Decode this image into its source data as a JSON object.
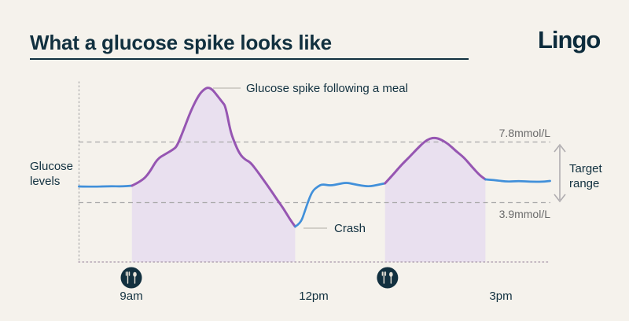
{
  "header": {
    "title": "What a glucose spike looks like",
    "logo": "Lingo"
  },
  "labels": {
    "y_axis": "Glucose levels"
  },
  "annotations": {
    "spike": "Glucose spike following a meal",
    "crash": "Crash",
    "target_range": "Target range",
    "upper_threshold": "7.8mmol/L",
    "lower_threshold": "3.9mmol/L"
  },
  "colors": {
    "background": "#f5f2ec",
    "navy": "#11303f",
    "purple": "#9656b2",
    "purple_fill": "#e9e0ef",
    "blue": "#4190da",
    "guide_gray": "#a9a9a9",
    "baseline_dots": "#b3a4b3",
    "leader_gray": "#c6c3bc",
    "arrow_gray": "#b0adb0",
    "gray_text": "#6b6b6b",
    "icon_circle": "#12303f",
    "icon_glyph": "#e7e2d8"
  },
  "chart_data": {
    "type": "line",
    "x_unit": "hour_of_day",
    "y_unit": "mmol/L",
    "x_ticks": [
      {
        "t": 9,
        "label": "9am"
      },
      {
        "t": 12,
        "label": "12pm"
      },
      {
        "t": 15,
        "label": "3pm"
      }
    ],
    "thresholds": {
      "upper": 7.8,
      "lower": 3.9
    },
    "ylim": [
      0,
      11.5
    ],
    "xlim": [
      8.15,
      15.8
    ],
    "legend": "none",
    "meals": [
      {
        "t": 9.0,
        "icon": "cutlery-icon"
      },
      {
        "t": 13.16,
        "icon": "cutlery-icon"
      }
    ],
    "series": [
      {
        "name": "baseline-before-meal",
        "color_role": "blue",
        "filled": false,
        "points": [
          [
            8.15,
            4.95
          ],
          [
            8.4,
            4.93
          ],
          [
            8.65,
            4.97
          ],
          [
            8.85,
            4.95
          ],
          [
            9.01,
            5.0
          ]
        ]
      },
      {
        "name": "spike-after-meal",
        "color_role": "purple",
        "filled": true,
        "points": [
          [
            9.01,
            5.0
          ],
          [
            9.17,
            5.3
          ],
          [
            9.29,
            5.8
          ],
          [
            9.42,
            6.7
          ],
          [
            9.55,
            7.0
          ],
          [
            9.68,
            7.3
          ],
          [
            9.74,
            7.5
          ],
          [
            9.84,
            8.45
          ],
          [
            9.97,
            9.8
          ],
          [
            10.1,
            10.8
          ],
          [
            10.19,
            11.15
          ],
          [
            10.25,
            11.25
          ],
          [
            10.32,
            11.1
          ],
          [
            10.4,
            10.7
          ],
          [
            10.48,
            10.3
          ],
          [
            10.53,
            10.05
          ],
          [
            10.61,
            8.45
          ],
          [
            10.67,
            7.8
          ],
          [
            10.76,
            7.0
          ],
          [
            10.85,
            6.65
          ],
          [
            10.93,
            6.5
          ],
          [
            11.04,
            5.95
          ],
          [
            11.15,
            5.35
          ],
          [
            11.25,
            4.8
          ],
          [
            11.36,
            4.15
          ],
          [
            11.47,
            3.55
          ],
          [
            11.57,
            2.9
          ],
          [
            11.66,
            2.4
          ]
        ]
      },
      {
        "name": "crash-recovery",
        "color_role": "blue",
        "filled": false,
        "points": [
          [
            11.66,
            2.4
          ],
          [
            11.75,
            2.6
          ],
          [
            11.82,
            3.4
          ],
          [
            11.89,
            4.2
          ],
          [
            11.95,
            4.7
          ],
          [
            12.03,
            4.95
          ],
          [
            12.1,
            5.1
          ],
          [
            12.23,
            5.0
          ],
          [
            12.36,
            5.1
          ],
          [
            12.49,
            5.2
          ],
          [
            12.61,
            5.1
          ],
          [
            12.74,
            5.0
          ],
          [
            12.87,
            4.95
          ],
          [
            13.0,
            5.05
          ],
          [
            13.12,
            5.15
          ]
        ]
      },
      {
        "name": "second-spike",
        "color_role": "purple",
        "filled": true,
        "points": [
          [
            13.12,
            5.15
          ],
          [
            13.25,
            5.7
          ],
          [
            13.38,
            6.3
          ],
          [
            13.51,
            6.8
          ],
          [
            13.63,
            7.3
          ],
          [
            13.76,
            7.8
          ],
          [
            13.85,
            8.0
          ],
          [
            13.93,
            8.05
          ],
          [
            14.02,
            7.95
          ],
          [
            14.15,
            7.65
          ],
          [
            14.27,
            7.2
          ],
          [
            14.4,
            6.8
          ],
          [
            14.53,
            6.2
          ],
          [
            14.66,
            5.65
          ],
          [
            14.75,
            5.4
          ]
        ]
      },
      {
        "name": "baseline-after",
        "color_role": "blue",
        "filled": false,
        "points": [
          [
            14.75,
            5.4
          ],
          [
            14.91,
            5.35
          ],
          [
            15.1,
            5.25
          ],
          [
            15.29,
            5.3
          ],
          [
            15.48,
            5.25
          ],
          [
            15.68,
            5.25
          ],
          [
            15.8,
            5.3
          ]
        ]
      }
    ]
  }
}
